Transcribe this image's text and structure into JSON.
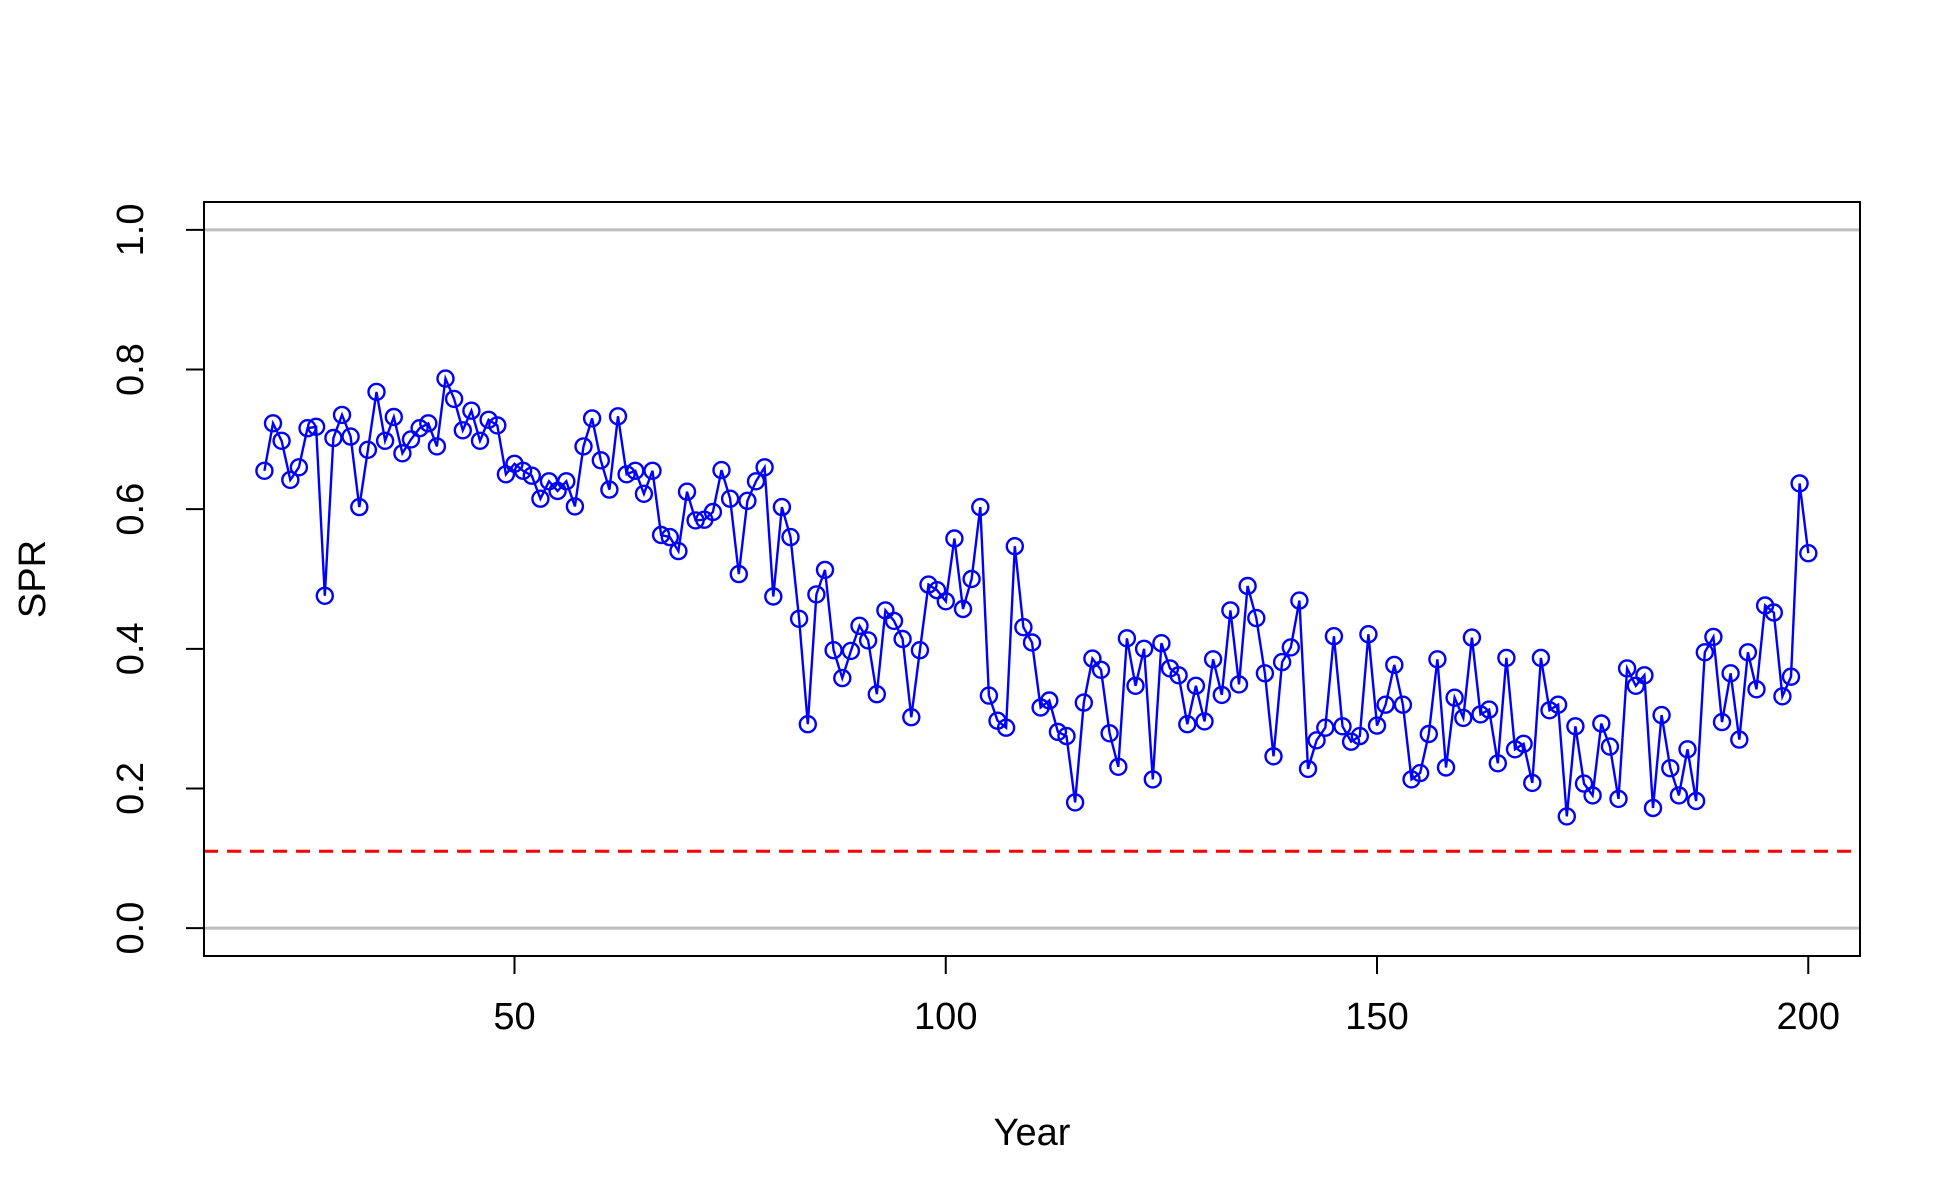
{
  "chart_data": {
    "type": "line",
    "xlabel": "Year",
    "ylabel": "SPR",
    "xlim": [
      14,
      206
    ],
    "ylim": [
      -0.04,
      1.04
    ],
    "x_ticks": [
      50,
      100,
      150,
      200
    ],
    "y_ticks": [
      0.0,
      0.2,
      0.4,
      0.6,
      0.8,
      1.0
    ],
    "x_tick_labels": [
      "50",
      "100",
      "150",
      "200"
    ],
    "y_tick_labels": [
      "0.0",
      "0.2",
      "0.4",
      "0.6",
      "0.8",
      "1.0"
    ],
    "reference_lines": [
      {
        "y": 1.0,
        "color": "#bebebe",
        "style": "solid"
      },
      {
        "y": 0.0,
        "color": "#bebebe",
        "style": "solid"
      },
      {
        "y": 0.11,
        "color": "#ff0000",
        "style": "dashed"
      }
    ],
    "series": [
      {
        "color": "#0000ff",
        "marker": "open-circle",
        "x_start": 21,
        "values": [
          0.655,
          0.723,
          0.698,
          0.642,
          0.66,
          0.716,
          0.718,
          0.476,
          0.702,
          0.735,
          0.704,
          0.603,
          0.685,
          0.768,
          0.698,
          0.732,
          0.68,
          0.7,
          0.716,
          0.723,
          0.69,
          0.787,
          0.758,
          0.713,
          0.741,
          0.698,
          0.728,
          0.72,
          0.65,
          0.665,
          0.655,
          0.648,
          0.615,
          0.64,
          0.626,
          0.64,
          0.604,
          0.69,
          0.73,
          0.67,
          0.628,
          0.733,
          0.65,
          0.655,
          0.622,
          0.655,
          0.563,
          0.56,
          0.54,
          0.625,
          0.584,
          0.585,
          0.596,
          0.656,
          0.615,
          0.507,
          0.612,
          0.64,
          0.66,
          0.475,
          0.603,
          0.56,
          0.443,
          0.292,
          0.478,
          0.513,
          0.398,
          0.358,
          0.397,
          0.433,
          0.412,
          0.335,
          0.455,
          0.44,
          0.414,
          0.302,
          0.398,
          0.492,
          0.484,
          0.468,
          0.558,
          0.457,
          0.5,
          0.603,
          0.333,
          0.297,
          0.287,
          0.547,
          0.431,
          0.409,
          0.316,
          0.326,
          0.281,
          0.275,
          0.18,
          0.323,
          0.386,
          0.37,
          0.279,
          0.231,
          0.415,
          0.347,
          0.4,
          0.213,
          0.408,
          0.372,
          0.362,
          0.292,
          0.347,
          0.296,
          0.385,
          0.334,
          0.455,
          0.349,
          0.49,
          0.444,
          0.365,
          0.246,
          0.381,
          0.402,
          0.469,
          0.228,
          0.269,
          0.287,
          0.418,
          0.289,
          0.267,
          0.275,
          0.421,
          0.29,
          0.32,
          0.377,
          0.32,
          0.213,
          0.222,
          0.278,
          0.385,
          0.23,
          0.33,
          0.301,
          0.416,
          0.306,
          0.313,
          0.236,
          0.387,
          0.256,
          0.264,
          0.208,
          0.387,
          0.312,
          0.32,
          0.16,
          0.289,
          0.207,
          0.19,
          0.293,
          0.26,
          0.185,
          0.372,
          0.347,
          0.362,
          0.172,
          0.305,
          0.229,
          0.19,
          0.256,
          0.182,
          0.395,
          0.417,
          0.295,
          0.365,
          0.27,
          0.395,
          0.342,
          0.462,
          0.452,
          0.332,
          0.36,
          0.637,
          0.537
        ]
      }
    ]
  }
}
